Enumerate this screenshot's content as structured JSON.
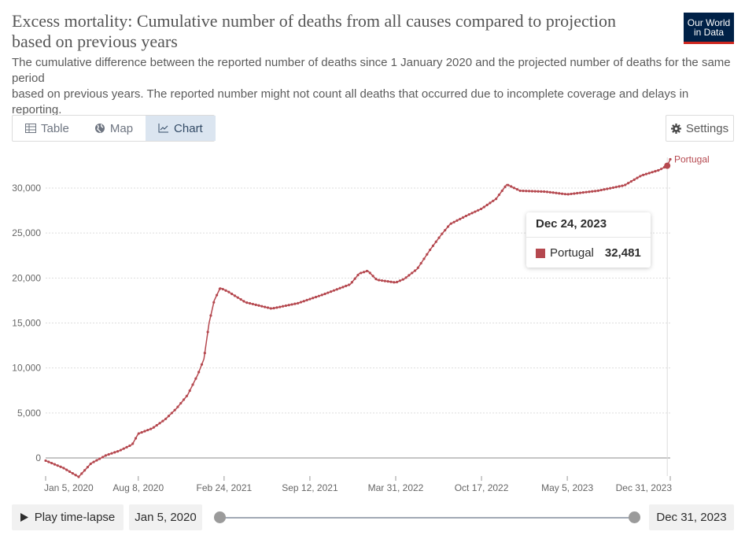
{
  "header": {
    "title": "Excess mortality: Cumulative number of deaths from all causes compared to projection based on previous years",
    "subtitle_line1": "The cumulative difference between the reported number of deaths since 1 January 2020 and the projected number of deaths for the same",
    "subtitle_line2": "period",
    "subtitle_line3": "based on previous years. The reported number might not count all deaths that occurred due to incomplete coverage and delays in reporting.",
    "logo_line1": "Our World",
    "logo_line2": "in Data"
  },
  "tabs": [
    {
      "label": "Table",
      "icon": "table-icon",
      "active": false
    },
    {
      "label": "Map",
      "icon": "globe-icon",
      "active": false
    },
    {
      "label": "Chart",
      "icon": "line-chart-icon",
      "active": true
    }
  ],
  "settings_label": "Settings",
  "tooltip": {
    "date": "Dec 24, 2023",
    "series": "Portugal",
    "value": "32,481"
  },
  "controls": {
    "play_label": "Play time-lapse",
    "start_date": "Jan 5, 2020",
    "end_date": "Dec 31, 2023"
  },
  "colors": {
    "series": "#b5484f",
    "grid": "#dddddd",
    "zero_line": "#8d8d8d"
  },
  "chart_data": {
    "type": "line",
    "xlabel": "",
    "ylabel": "",
    "ylim": [
      -2200,
      33500
    ],
    "xlim": [
      "2020-01-05",
      "2023-12-31"
    ],
    "grid": "horizontal dotted",
    "y_ticks": [
      0,
      5000,
      10000,
      15000,
      20000,
      25000,
      30000
    ],
    "y_tick_labels": [
      "0",
      "5,000",
      "10,000",
      "15,000",
      "20,000",
      "25,000",
      "30,000"
    ],
    "x_ticks": [
      "2020-01-05",
      "2020-08-08",
      "2021-02-24",
      "2021-09-12",
      "2022-03-31",
      "2022-10-17",
      "2023-05-05",
      "2023-12-31"
    ],
    "x_tick_labels": [
      "Jan 5, 2020",
      "Aug 8, 2020",
      "Feb 24, 2021",
      "Sep 12, 2021",
      "Mar 31, 2022",
      "Oct 17, 2022",
      "May 5, 2023",
      "Dec 31, 2023"
    ],
    "series": [
      {
        "name": "Portugal",
        "points": [
          [
            "2020-01-05",
            -300
          ],
          [
            "2020-02-15",
            -1100
          ],
          [
            "2020-03-22",
            -2100
          ],
          [
            "2020-04-20",
            -600
          ],
          [
            "2020-05-25",
            300
          ],
          [
            "2020-06-25",
            800
          ],
          [
            "2020-07-25",
            1500
          ],
          [
            "2020-08-08",
            2700
          ],
          [
            "2020-09-10",
            3300
          ],
          [
            "2020-10-10",
            4300
          ],
          [
            "2020-11-05",
            5500
          ],
          [
            "2020-12-01",
            7000
          ],
          [
            "2020-12-25",
            9300
          ],
          [
            "2021-01-08",
            11000
          ],
          [
            "2021-01-20",
            15000
          ],
          [
            "2021-02-01",
            17500
          ],
          [
            "2021-02-15",
            18900
          ],
          [
            "2021-03-05",
            18500
          ],
          [
            "2021-04-15",
            17300
          ],
          [
            "2021-06-15",
            16600
          ],
          [
            "2021-08-15",
            17200
          ],
          [
            "2021-10-15",
            18200
          ],
          [
            "2021-12-15",
            19300
          ],
          [
            "2022-01-05",
            20500
          ],
          [
            "2022-01-25",
            20800
          ],
          [
            "2022-02-15",
            19800
          ],
          [
            "2022-03-31",
            19500
          ],
          [
            "2022-04-20",
            19900
          ],
          [
            "2022-05-20",
            21000
          ],
          [
            "2022-06-20",
            23200
          ],
          [
            "2022-07-15",
            24800
          ],
          [
            "2022-08-05",
            26000
          ],
          [
            "2022-09-15",
            27000
          ],
          [
            "2022-10-17",
            27700
          ],
          [
            "2022-11-20",
            28800
          ],
          [
            "2022-12-15",
            30400
          ],
          [
            "2023-01-15",
            29700
          ],
          [
            "2023-03-15",
            29600
          ],
          [
            "2023-05-05",
            29300
          ],
          [
            "2023-07-15",
            29700
          ],
          [
            "2023-09-15",
            30300
          ],
          [
            "2023-10-25",
            31400
          ],
          [
            "2023-12-05",
            32000
          ],
          [
            "2023-12-24",
            32481
          ],
          [
            "2023-12-31",
            33200
          ]
        ]
      }
    ],
    "legend": "inline-right"
  }
}
